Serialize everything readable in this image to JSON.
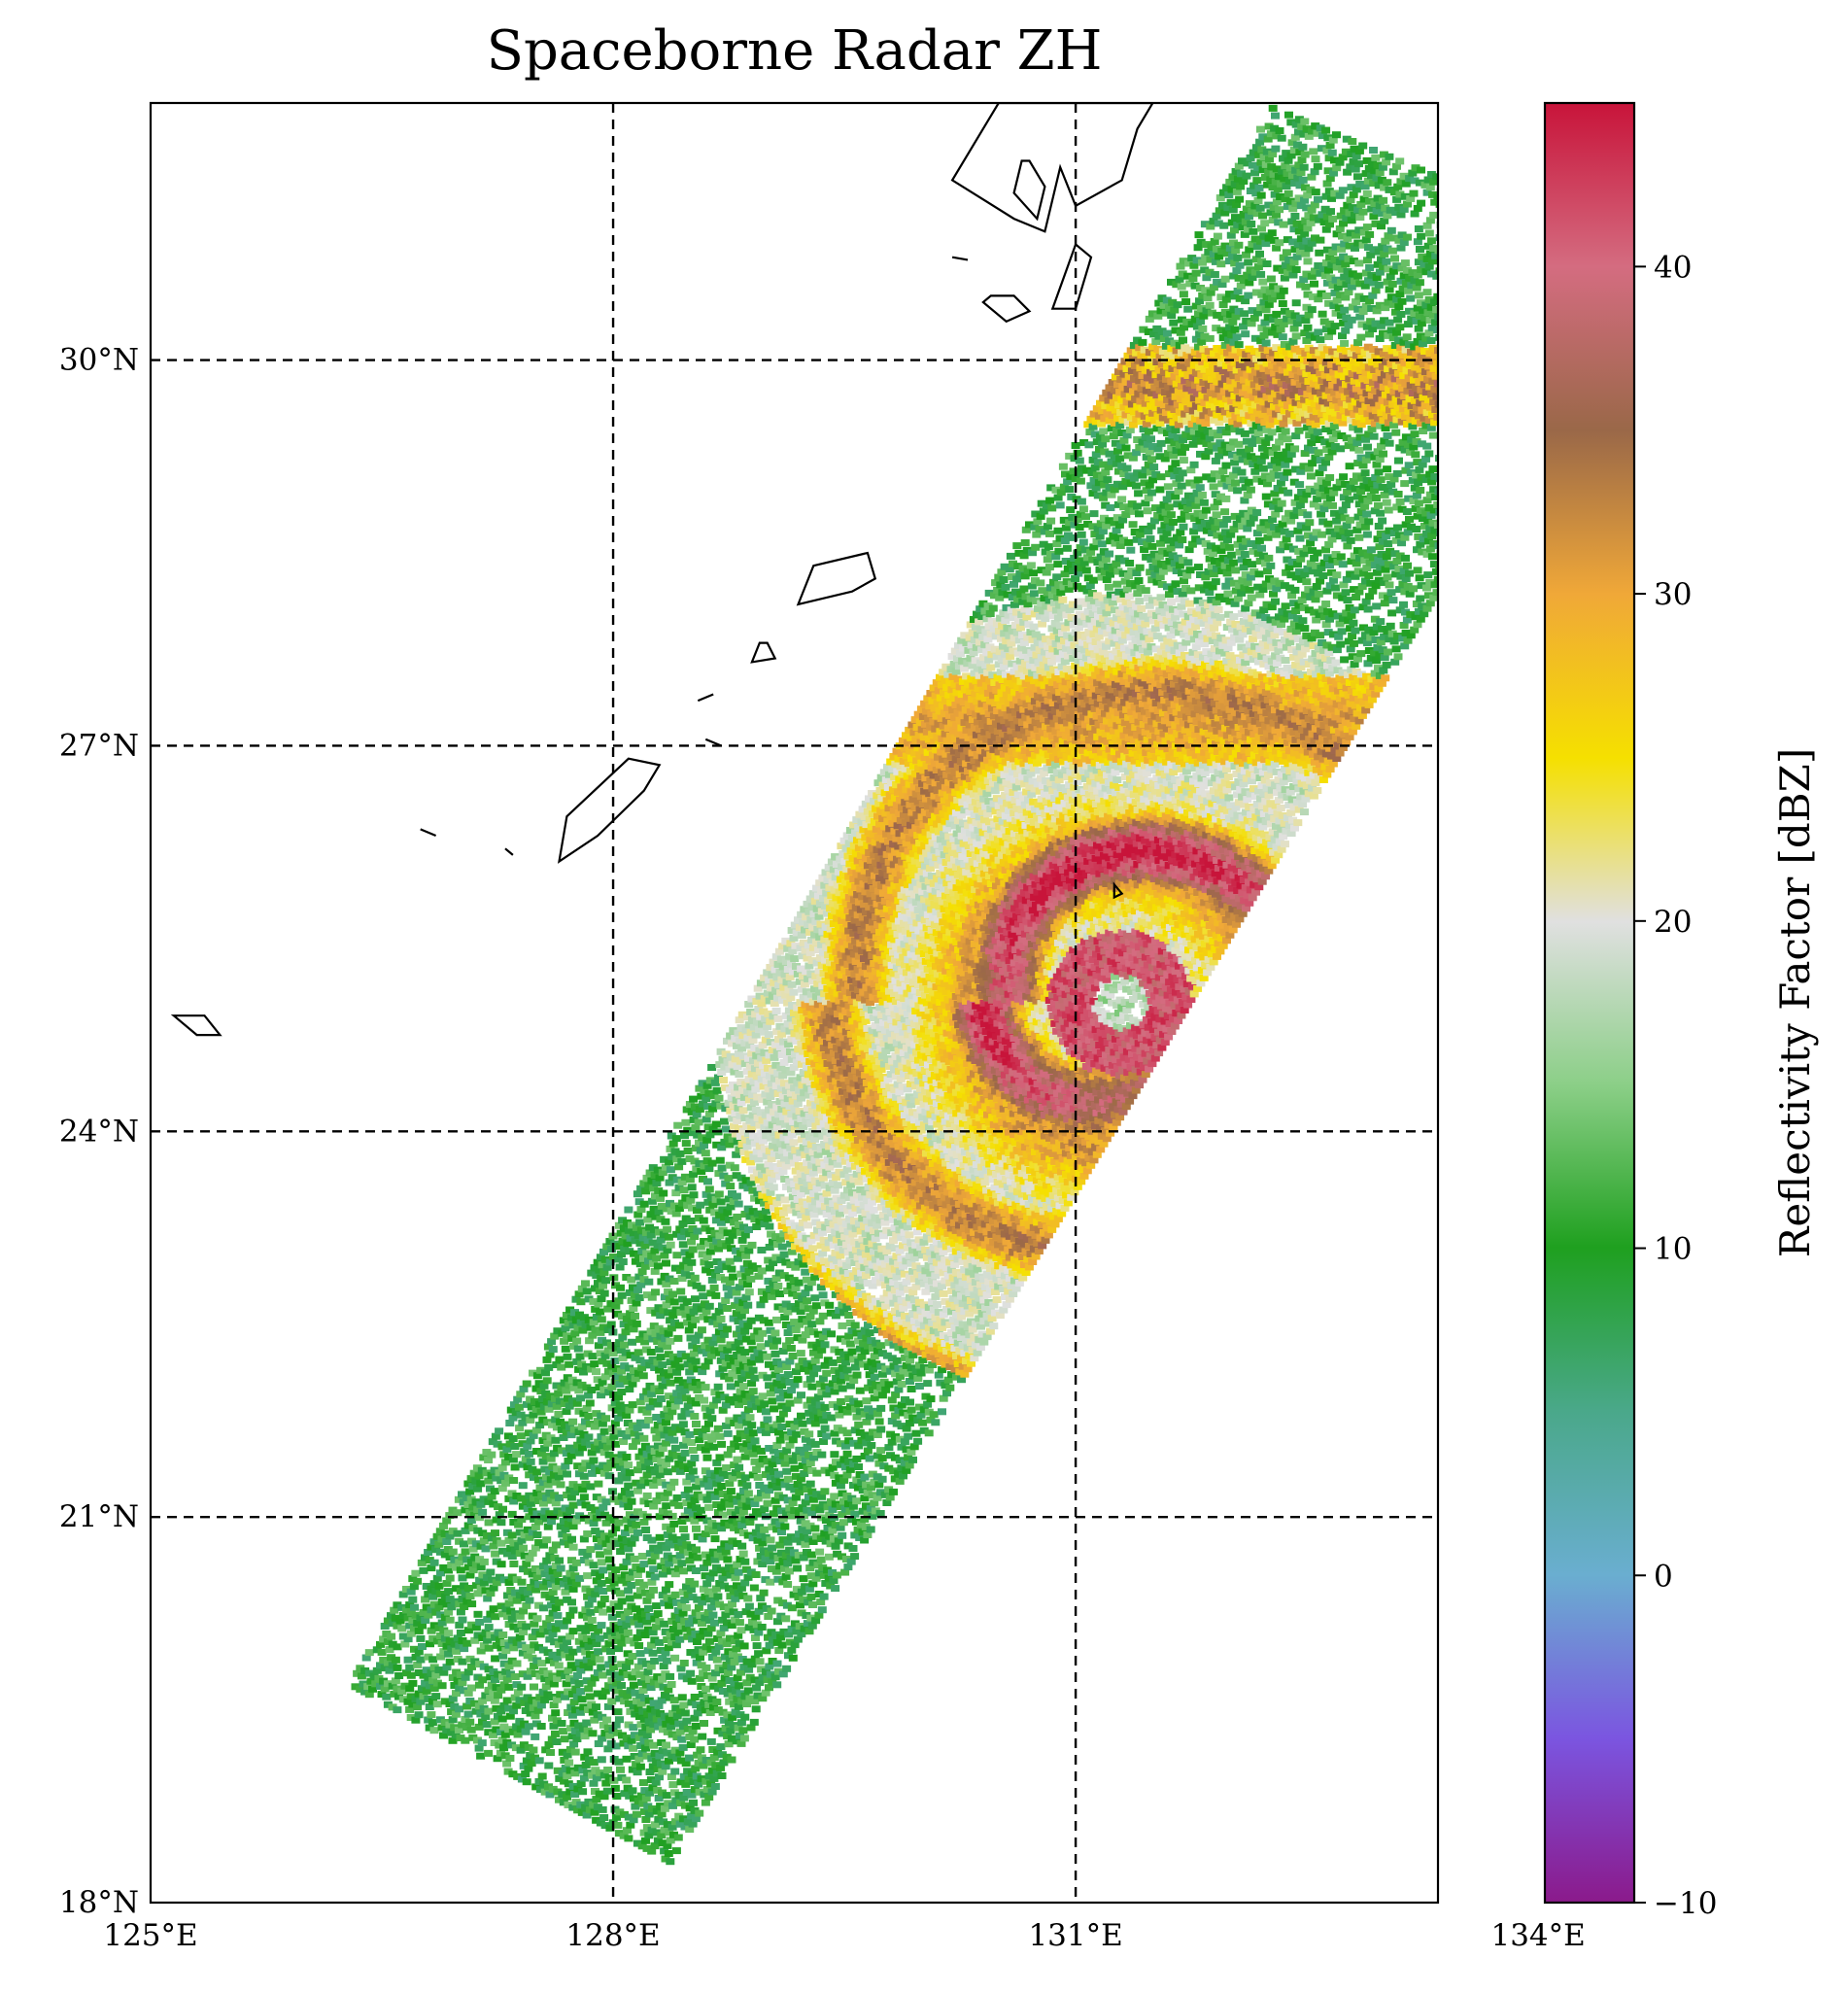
{
  "title": "Spaceborne Radar ZH",
  "map": {
    "lon_range": [
      125,
      133.35
    ],
    "lat_range": [
      18,
      32
    ],
    "gridlines": "dashed",
    "x_ticks": [
      {
        "value": 125,
        "label": "125°E"
      },
      {
        "value": 128,
        "label": "128°E"
      },
      {
        "value": 131,
        "label": "131°E"
      },
      {
        "value": 134,
        "label": "134°E"
      }
    ],
    "y_ticks": [
      {
        "value": 18,
        "label": "18°N"
      },
      {
        "value": 21,
        "label": "21°N"
      },
      {
        "value": 24,
        "label": "24°N"
      },
      {
        "value": 27,
        "label": "27°N"
      },
      {
        "value": 30,
        "label": "30°N"
      }
    ]
  },
  "chart_data": {
    "type": "heatmap",
    "title": "Spaceborne Radar ZH",
    "field": "ZH",
    "swath_corners_lonlat": [
      [
        126.3,
        19.7
      ],
      [
        128.4,
        18.3
      ],
      [
        134.7,
        30.8
      ],
      [
        132.3,
        32.0
      ]
    ],
    "typhoon_eye_lonlat": [
      131.3,
      25.0
    ],
    "rainbands": [
      {
        "description": "rainband",
        "lat_center": 29.8
      },
      {
        "description": "rainband",
        "lat_center": 27.2
      },
      {
        "description": "eyewall",
        "lat_center": 25.0
      }
    ],
    "colorbar": {
      "label": "Reflectivity Factor [dBZ]",
      "range": [
        -10,
        45
      ],
      "ticks": [
        -10,
        0,
        10,
        20,
        30,
        40
      ],
      "tick_labels": [
        "−10",
        "0",
        "10",
        "20",
        "30",
        "40"
      ],
      "colors": [
        "#8b1a8b",
        "#7b55e0",
        "#6aaed0",
        "#4aa88a",
        "#1fa01f",
        "#8ccf88",
        "#e0e0e0",
        "#f5e000",
        "#f0a838",
        "#9a6848",
        "#d46c80",
        "#c8143a"
      ]
    }
  },
  "coastline": {
    "color": "#000000"
  }
}
